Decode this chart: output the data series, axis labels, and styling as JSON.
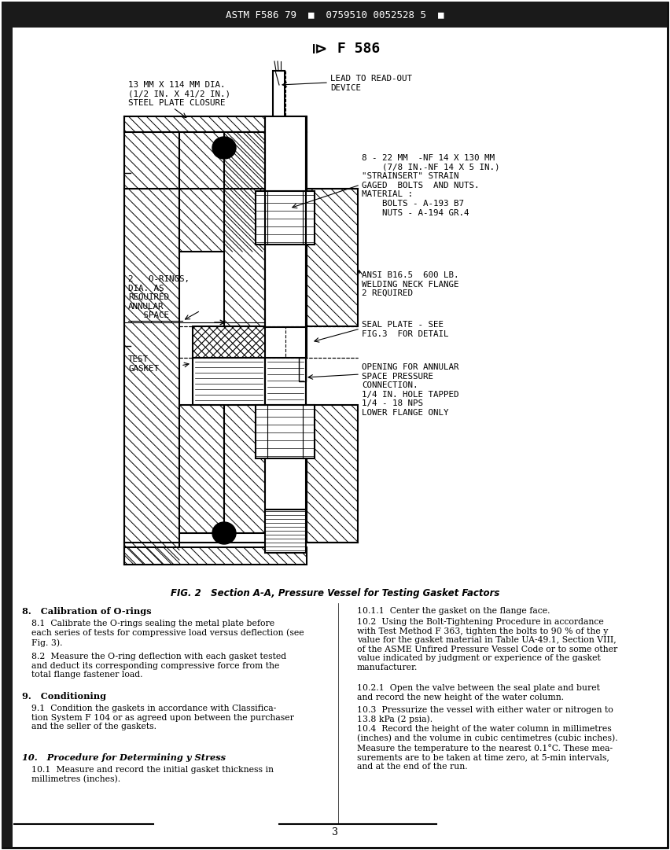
{
  "page_bg": "#ffffff",
  "header_text": "ASTM F586 79  ■  0759510 0052528 5  ■",
  "logo_symbol": "⧐",
  "logo_text": " F 586",
  "fig_caption": "FIG. 2   Section A-A, Pressure Vessel for Testing Gasket Factors",
  "section8_title": "8.   Calibration of O-rings",
  "section8_p1": "8.1  Calibrate the O-rings sealing the metal plate before\neach series of tests for compressive load versus deflection (see\nFig. 3).",
  "section8_p2": "8.2  Measure the O-ring deflection with each gasket tested\nand deduct its corresponding compressive force from the\ntotal flange fastener load.",
  "section9_title": "9.   Conditioning",
  "section9_p1": "9.1  Condition the gaskets in accordance with Classifica-\ntion System F 104 or as agreed upon between the purchaser\nand the seller of the gaskets.",
  "section10_title": "10.   Procedure for Determining y Stress",
  "section10_p1": "10.1  Measure and record the initial gasket thickness in\nmillimetres (inches).",
  "right_col_10_1_1": "10.1.1  Center the gasket on the flange face.",
  "right_col_10_2": "10.2  Using the Bolt-Tightening Procedure in accordance\nwith Test Method F 363, tighten the bolts to 90 % of the y\nvalue for the gasket material in Table UA-49.1, Section VIII,\nof the ASME Unfired Pressure Vessel Code or to some other\nvalue indicated by judgment or experience of the gasket\nmanufacturer.",
  "right_col_10_2_1": "10.2.1  Open the valve between the seal plate and buret\nand record the new height of the water column.",
  "right_col_10_3": "10.3  Pressurize the vessel with either water or nitrogen to\n13.8 kPa (2 psia).",
  "right_col_10_4": "10.4  Record the height of the water column in millimetres\n(inches) and the volume in cubic centimetres (cubic inches).\nMeasure the temperature to the nearest 0.1°C. These mea-\nsurements are to be taken at time zero, at 5-min intervals,\nand at the end of the run.",
  "page_number": "3",
  "ann_top_left": "13 MM X 114 MM DIA.\n(1/2 IN. X 41/2 IN.)\nSTEEL PLATE CLOSURE",
  "ann_top_right": "LEAD TO READ-OUT\nDEVICE",
  "ann_right_upper": "8 - 22 MM  -NF 14 X 130 MM\n    (7/8 IN.-NF 14 X 5 IN.)\n\"STRAINSERT\" STRAIN\nGAGED  BOLTS  AND NUTS.\nMATERIAL :\n    BOLTS - A-193 B7\n    NUTS - A-194 GR.4",
  "ann_left_mid": "2   O-RINGS,\nDIA. AS\nREQUIRED\nANNULAR\n   SPACE",
  "ann_right_mid": "ANSI B16.5  600 LB.\nWELDING NECK FLANGE\n2 REQUIRED",
  "ann_right_seal": "SEAL PLATE - SEE\nFIG.3  FOR DETAIL",
  "ann_left_bottom": "TEST\nGASKET",
  "ann_right_bottom": "OPENING FOR ANNULAR\nSPACE PRESSURE\nCONNECTION.\n1/4 IN. HOLE TAPPED\n1/4 - 18 NPS\nLOWER FLANGE ONLY"
}
